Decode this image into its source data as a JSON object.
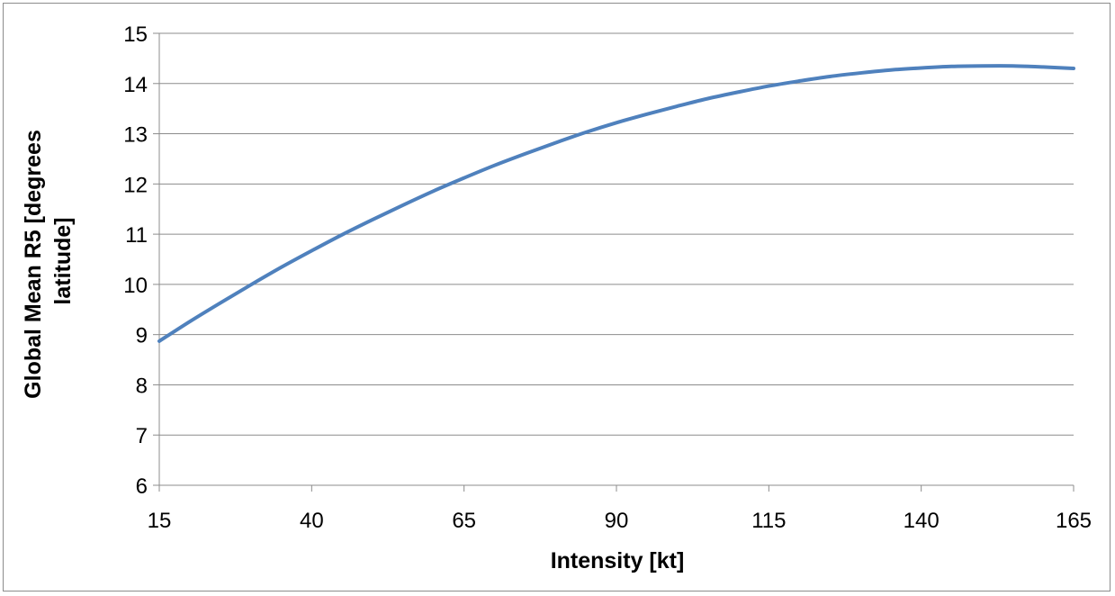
{
  "chart_data": {
    "type": "line",
    "title": "",
    "xlabel": "Intensity [kt]",
    "ylabel_lines": [
      "Global Mean R5 [degrees",
      "latitude]"
    ],
    "xlim": [
      15,
      165
    ],
    "ylim": [
      6,
      15
    ],
    "x_ticks": [
      15,
      40,
      65,
      90,
      115,
      140,
      165
    ],
    "y_ticks": [
      6,
      7,
      8,
      9,
      10,
      11,
      12,
      13,
      14,
      15
    ],
    "grid": "horizontal",
    "legend": "none",
    "series": [
      {
        "color": "#4f81bd",
        "x": [
          15,
          20,
          25,
          30,
          35,
          40,
          45,
          50,
          55,
          60,
          65,
          70,
          75,
          80,
          85,
          90,
          95,
          100,
          105,
          110,
          115,
          120,
          125,
          130,
          135,
          140,
          145,
          150,
          155,
          160,
          165
        ],
        "y": [
          8.87,
          9.26,
          9.63,
          9.99,
          10.34,
          10.67,
          10.99,
          11.29,
          11.58,
          11.86,
          12.12,
          12.37,
          12.6,
          12.82,
          13.03,
          13.22,
          13.39,
          13.55,
          13.7,
          13.83,
          13.95,
          14.05,
          14.14,
          14.21,
          14.27,
          14.31,
          14.34,
          14.35,
          14.35,
          14.33,
          14.3
        ]
      }
    ]
  }
}
